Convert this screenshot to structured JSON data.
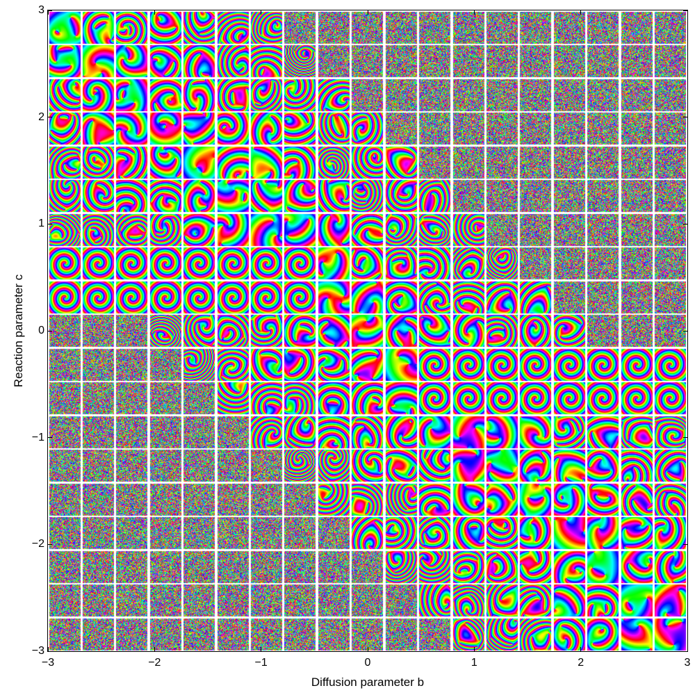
{
  "figure": {
    "xlabel": "Diffusion parameter b",
    "ylabel": "Reaction parameter c",
    "xlim": [
      -3,
      3
    ],
    "ylim": [
      -3,
      3
    ],
    "x_ticks": [
      "−3",
      "−2",
      "−1",
      "0",
      "1",
      "2",
      "3"
    ],
    "y_ticks": [
      "3",
      "2",
      "1",
      "0",
      "−1",
      "−2",
      "−3"
    ],
    "x_tick_values": [
      -3,
      -2,
      -1,
      0,
      1,
      2,
      3
    ],
    "y_tick_values": [
      3,
      2,
      1,
      0,
      -1,
      -2,
      -3
    ],
    "grid_size": 19,
    "grid_line_color": "#ffffff",
    "tile_palette": [
      "#ff0000",
      "#ff8800",
      "#ffff00",
      "#00ff33",
      "#00ffff",
      "#0066ff",
      "#aa00ff",
      "#ff00cc"
    ]
  }
}
